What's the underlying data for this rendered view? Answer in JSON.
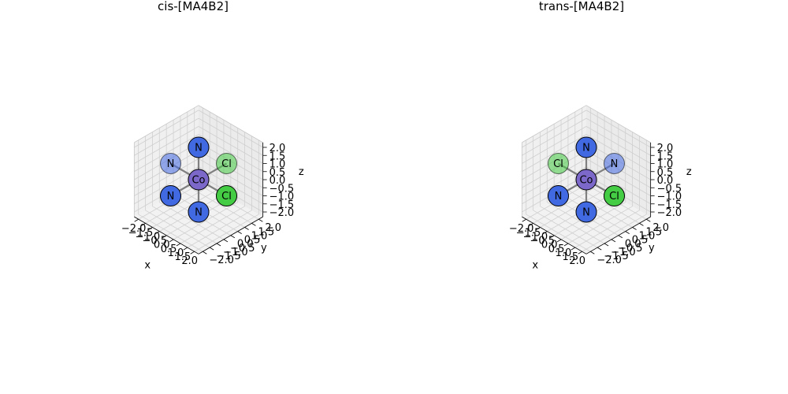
{
  "chart_data": [
    {
      "type": "scatter3d",
      "title": "cis-[MA4B2]",
      "xlabel": "x",
      "ylabel": "y",
      "zlabel": "z",
      "xlim": [
        -2.0,
        2.0
      ],
      "ylim": [
        -2.0,
        2.0
      ],
      "zlim": [
        -2.0,
        2.0
      ],
      "xticks": [
        "−2.0",
        "−1.5",
        "−1.0",
        "−0.5",
        "0.0",
        "0.5",
        "1.0",
        "1.5",
        "2.0"
      ],
      "yticks": [
        "−2.0",
        "−1.5",
        "−1.0",
        "−0.5",
        "0.0",
        "0.5",
        "1.0",
        "1.5",
        "2.0"
      ],
      "zticks": [
        "−2.0",
        "−1.5",
        "−1.0",
        "−0.5",
        "0.0",
        "0.5",
        "1.0",
        "1.5",
        "2.0"
      ],
      "grid": true,
      "atoms": [
        {
          "label": "Co",
          "x": 0,
          "y": 0,
          "z": 0,
          "color": "#7b68c9"
        },
        {
          "label": "N",
          "x": 0,
          "y": 0,
          "z": 2,
          "color": "#4169e1"
        },
        {
          "label": "N",
          "x": 0,
          "y": 0,
          "z": -2,
          "color": "#4169e1"
        },
        {
          "label": "N",
          "x": -2,
          "y": 0,
          "z": 0,
          "color": "#4169e1"
        },
        {
          "label": "N",
          "x": 0,
          "y": -2,
          "z": 0,
          "color": "#4169e1"
        },
        {
          "label": "Cl",
          "x": 2,
          "y": 0,
          "z": 0,
          "color": "#44cc44"
        },
        {
          "label": "Cl",
          "x": 0,
          "y": 2,
          "z": 0,
          "color": "#44cc44"
        }
      ]
    },
    {
      "type": "scatter3d",
      "title": "trans-[MA4B2]",
      "xlabel": "x",
      "ylabel": "y",
      "zlabel": "z",
      "xlim": [
        -2.0,
        2.0
      ],
      "ylim": [
        -2.0,
        2.0
      ],
      "zlim": [
        -2.0,
        2.0
      ],
      "xticks": [
        "−2.0",
        "−1.5",
        "−1.0",
        "−0.5",
        "0.0",
        "0.5",
        "1.0",
        "1.5",
        "2.0"
      ],
      "yticks": [
        "−2.0",
        "−1.5",
        "−1.0",
        "−0.5",
        "0.0",
        "0.5",
        "1.0",
        "1.5",
        "2.0"
      ],
      "zticks": [
        "−2.0",
        "−1.5",
        "−1.0",
        "−0.5",
        "0.0",
        "0.5",
        "1.0",
        "1.5",
        "2.0"
      ],
      "grid": true,
      "atoms": [
        {
          "label": "Co",
          "x": 0,
          "y": 0,
          "z": 0,
          "color": "#7b68c9"
        },
        {
          "label": "N",
          "x": 0,
          "y": 0,
          "z": 2,
          "color": "#4169e1"
        },
        {
          "label": "N",
          "x": 0,
          "y": 0,
          "z": -2,
          "color": "#4169e1"
        },
        {
          "label": "N",
          "x": 0,
          "y": -2,
          "z": 0,
          "color": "#4169e1"
        },
        {
          "label": "N",
          "x": 0,
          "y": 2,
          "z": 0,
          "color": "#4169e1"
        },
        {
          "label": "Cl",
          "x": -2,
          "y": 0,
          "z": 0,
          "color": "#44cc44"
        },
        {
          "label": "Cl",
          "x": 2,
          "y": 0,
          "z": 0,
          "color": "#44cc44"
        }
      ]
    }
  ]
}
